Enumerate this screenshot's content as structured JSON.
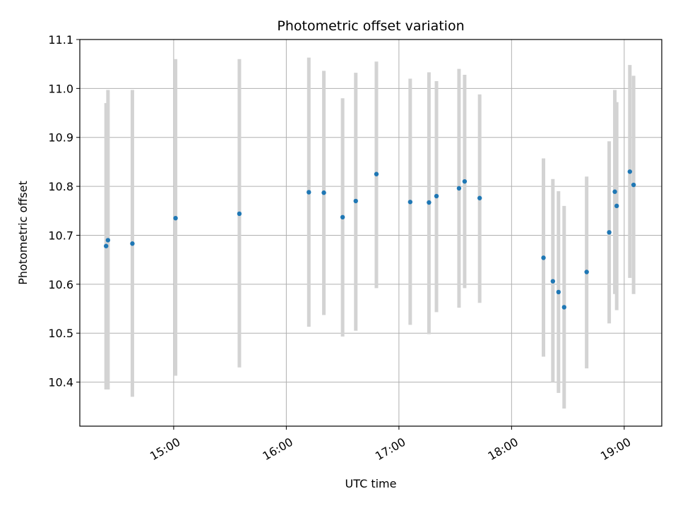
{
  "chart_data": {
    "type": "scatter",
    "title": "Photometric offset variation",
    "xlabel": "UTC time",
    "ylabel": "Photometric offset",
    "x_axis_type": "time",
    "xlim": [
      "14:10",
      "19:20"
    ],
    "ylim": [
      10.31,
      11.1
    ],
    "x_ticks": [
      "15:00",
      "16:00",
      "17:00",
      "18:00",
      "19:00"
    ],
    "y_ticks": [
      "10.4",
      "10.5",
      "10.6",
      "10.7",
      "10.8",
      "10.9",
      "11.0",
      "11.1"
    ],
    "grid": true,
    "colors": {
      "points": "#1f77b4",
      "errorbars": "#d3d3d3",
      "grid": "#b0b0b0"
    },
    "series": [
      {
        "points": [
          {
            "x": "14:24",
            "y": 10.678,
            "yerr": [
              10.385,
              10.97
            ]
          },
          {
            "x": "14:25",
            "y": 10.69,
            "yerr": [
              10.385,
              10.997
            ]
          },
          {
            "x": "14:38",
            "y": 10.683,
            "yerr": [
              10.37,
              10.997
            ]
          },
          {
            "x": "15:01",
            "y": 10.735,
            "yerr": [
              10.413,
              11.06
            ]
          },
          {
            "x": "15:35",
            "y": 10.744,
            "yerr": [
              10.43,
              11.06
            ]
          },
          {
            "x": "16:12",
            "y": 10.788,
            "yerr": [
              10.513,
              11.063
            ]
          },
          {
            "x": "16:20",
            "y": 10.787,
            "yerr": [
              10.537,
              11.036
            ]
          },
          {
            "x": "16:30",
            "y": 10.737,
            "yerr": [
              10.493,
              10.98
            ]
          },
          {
            "x": "16:37",
            "y": 10.77,
            "yerr": [
              10.505,
              11.032
            ]
          },
          {
            "x": "16:48",
            "y": 10.825,
            "yerr": [
              10.592,
              11.055
            ]
          },
          {
            "x": "17:06",
            "y": 10.768,
            "yerr": [
              10.517,
              11.02
            ]
          },
          {
            "x": "17:16",
            "y": 10.767,
            "yerr": [
              10.498,
              11.033
            ]
          },
          {
            "x": "17:20",
            "y": 10.78,
            "yerr": [
              10.543,
              11.015
            ]
          },
          {
            "x": "17:32",
            "y": 10.796,
            "yerr": [
              10.552,
              11.04
            ]
          },
          {
            "x": "17:35",
            "y": 10.81,
            "yerr": [
              10.592,
              11.028
            ]
          },
          {
            "x": "17:43",
            "y": 10.776,
            "yerr": [
              10.562,
              10.988
            ]
          },
          {
            "x": "18:17",
            "y": 10.654,
            "yerr": [
              10.452,
              10.857
            ]
          },
          {
            "x": "18:22",
            "y": 10.606,
            "yerr": [
              10.4,
              10.815
            ]
          },
          {
            "x": "18:25",
            "y": 10.584,
            "yerr": [
              10.378,
              10.79
            ]
          },
          {
            "x": "18:28",
            "y": 10.553,
            "yerr": [
              10.346,
              10.76
            ]
          },
          {
            "x": "18:40",
            "y": 10.625,
            "yerr": [
              10.428,
              10.82
            ]
          },
          {
            "x": "18:52",
            "y": 10.706,
            "yerr": [
              10.52,
              10.892
            ]
          },
          {
            "x": "18:55",
            "y": 10.789,
            "yerr": [
              10.58,
              10.997
            ]
          },
          {
            "x": "18:56",
            "y": 10.76,
            "yerr": [
              10.547,
              10.972
            ]
          },
          {
            "x": "19:03",
            "y": 10.83,
            "yerr": [
              10.613,
              11.048
            ]
          },
          {
            "x": "19:05",
            "y": 10.803,
            "yerr": [
              10.58,
              11.026
            ]
          }
        ]
      }
    ]
  }
}
